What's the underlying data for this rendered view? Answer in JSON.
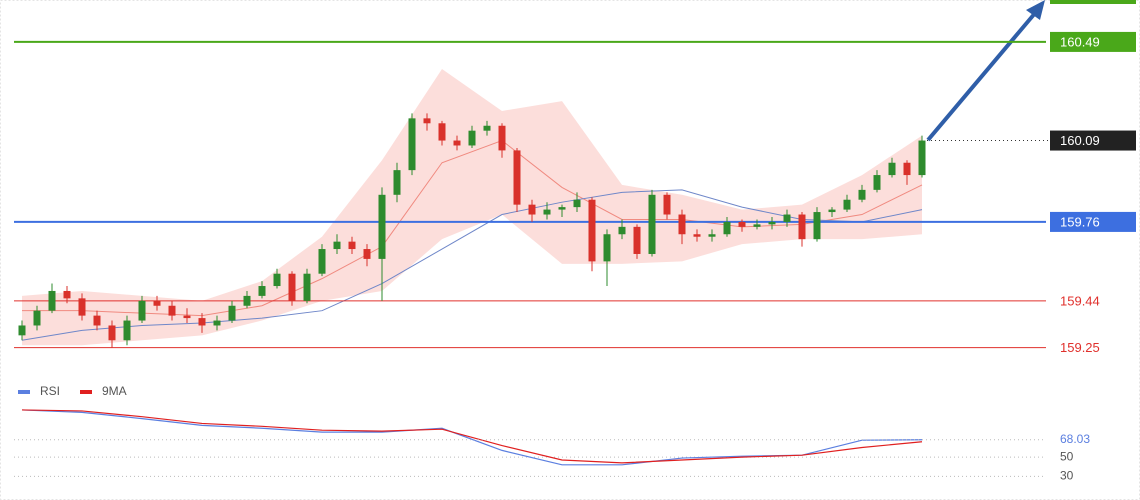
{
  "chart_data": [
    {
      "type": "candlestick",
      "ylim": [
        159.2,
        160.66
      ],
      "up_color": "#2e8b2e",
      "down_color": "#d9312b",
      "candles": [
        [
          159.3,
          159.36,
          159.28,
          159.34
        ],
        [
          159.34,
          159.42,
          159.32,
          159.4
        ],
        [
          159.4,
          159.51,
          159.39,
          159.48
        ],
        [
          159.48,
          159.5,
          159.43,
          159.45
        ],
        [
          159.45,
          159.47,
          159.36,
          159.38
        ],
        [
          159.38,
          159.4,
          159.32,
          159.34
        ],
        [
          159.34,
          159.36,
          159.25,
          159.28
        ],
        [
          159.28,
          159.38,
          159.26,
          159.36
        ],
        [
          159.36,
          159.46,
          159.35,
          159.44
        ],
        [
          159.44,
          159.46,
          159.4,
          159.42
        ],
        [
          159.42,
          159.44,
          159.36,
          159.38
        ],
        [
          159.38,
          159.41,
          159.35,
          159.37
        ],
        [
          159.37,
          159.39,
          159.31,
          159.34
        ],
        [
          159.34,
          159.38,
          159.32,
          159.36
        ],
        [
          159.36,
          159.44,
          159.35,
          159.42
        ],
        [
          159.42,
          159.48,
          159.41,
          159.46
        ],
        [
          159.46,
          159.52,
          159.45,
          159.5
        ],
        [
          159.5,
          159.57,
          159.49,
          159.55
        ],
        [
          159.55,
          159.56,
          159.42,
          159.44
        ],
        [
          159.44,
          159.57,
          159.43,
          159.55
        ],
        [
          159.55,
          159.67,
          159.54,
          159.65
        ],
        [
          159.65,
          159.71,
          159.63,
          159.68
        ],
        [
          159.68,
          159.7,
          159.63,
          159.65
        ],
        [
          159.65,
          159.67,
          159.58,
          159.61
        ],
        [
          159.61,
          159.9,
          159.44,
          159.87
        ],
        [
          159.87,
          160.0,
          159.84,
          159.97
        ],
        [
          159.97,
          160.2,
          159.95,
          160.18
        ],
        [
          160.18,
          160.2,
          160.13,
          160.16
        ],
        [
          160.16,
          160.17,
          160.07,
          160.09
        ],
        [
          160.09,
          160.11,
          160.05,
          160.07
        ],
        [
          160.07,
          160.15,
          160.06,
          160.13
        ],
        [
          160.13,
          160.17,
          160.11,
          160.15
        ],
        [
          160.15,
          160.16,
          160.02,
          160.05
        ],
        [
          160.05,
          160.06,
          159.8,
          159.83
        ],
        [
          159.83,
          159.85,
          159.76,
          159.79
        ],
        [
          159.79,
          159.84,
          159.77,
          159.81
        ],
        [
          159.81,
          159.83,
          159.78,
          159.82
        ],
        [
          159.82,
          159.88,
          159.8,
          159.85
        ],
        [
          159.85,
          159.86,
          159.56,
          159.6
        ],
        [
          159.6,
          159.73,
          159.5,
          159.71
        ],
        [
          159.71,
          159.77,
          159.69,
          159.74
        ],
        [
          159.74,
          159.75,
          159.61,
          159.63
        ],
        [
          159.63,
          159.89,
          159.62,
          159.87
        ],
        [
          159.87,
          159.88,
          159.77,
          159.79
        ],
        [
          159.79,
          159.81,
          159.67,
          159.71
        ],
        [
          159.71,
          159.73,
          159.68,
          159.7
        ],
        [
          159.7,
          159.73,
          159.68,
          159.71
        ],
        [
          159.71,
          159.78,
          159.7,
          159.76
        ],
        [
          159.76,
          159.77,
          159.72,
          159.74
        ],
        [
          159.74,
          159.77,
          159.73,
          159.75
        ],
        [
          159.75,
          159.78,
          159.73,
          159.76
        ],
        [
          159.76,
          159.81,
          159.74,
          159.79
        ],
        [
          159.79,
          159.8,
          159.66,
          159.69
        ],
        [
          159.69,
          159.82,
          159.68,
          159.8
        ],
        [
          159.8,
          159.82,
          159.78,
          159.81
        ],
        [
          159.81,
          159.87,
          159.8,
          159.85
        ],
        [
          159.85,
          159.91,
          159.84,
          159.89
        ],
        [
          159.89,
          159.97,
          159.88,
          159.95
        ],
        [
          159.95,
          160.02,
          159.94,
          160.0
        ],
        [
          160.0,
          160.01,
          159.91,
          159.95
        ],
        [
          159.95,
          160.11,
          159.94,
          160.09
        ]
      ],
      "overlay_x": [
        0,
        4,
        8,
        12,
        16,
        20,
        24,
        28,
        32,
        36,
        40,
        44,
        48,
        52,
        56,
        60
      ],
      "band": {
        "color": "#fbd3cf",
        "upper": [
          159.46,
          159.48,
          159.46,
          159.44,
          159.52,
          159.7,
          160.01,
          160.38,
          160.21,
          160.25,
          159.91,
          159.87,
          159.81,
          159.83,
          159.95,
          160.11
        ],
        "lower": [
          159.26,
          159.26,
          159.28,
          159.3,
          159.36,
          159.44,
          159.48,
          159.69,
          159.79,
          159.59,
          159.59,
          159.6,
          159.67,
          159.69,
          159.69,
          159.71
        ]
      },
      "ma_lines": [
        {
          "color": "#f08a80",
          "values": [
            159.4,
            159.4,
            159.39,
            159.38,
            159.42,
            159.53,
            159.66,
            160.0,
            160.09,
            159.9,
            159.77,
            159.77,
            159.74,
            159.75,
            159.79,
            159.91
          ]
        },
        {
          "color": "#6f87c9",
          "values": [
            159.28,
            159.32,
            159.34,
            159.35,
            159.37,
            159.4,
            159.51,
            159.65,
            159.79,
            159.84,
            159.88,
            159.89,
            159.82,
            159.77,
            159.76,
            159.81
          ]
        }
      ],
      "levels": [
        {
          "value": 160.49,
          "color": "#4aa81a",
          "label_box": true
        },
        {
          "value": 159.76,
          "color": "#3d6fe0",
          "label_box": true
        },
        {
          "value": 159.44,
          "color": "#e0302c",
          "label_box": false
        },
        {
          "value": 159.25,
          "color": "#e0302c",
          "label_box": false
        }
      ],
      "current": {
        "value": 160.09,
        "color": "#222222"
      }
    },
    {
      "type": "line",
      "ylim": [
        20,
        100
      ],
      "yticks": [
        50,
        30
      ],
      "x": [
        0,
        4,
        8,
        12,
        16,
        20,
        24,
        28,
        32,
        36,
        40,
        44,
        48,
        52,
        56,
        60
      ],
      "series": [
        {
          "name": "RSI",
          "color": "#5b7fe0",
          "values": [
            99,
            96.5,
            90,
            83,
            80,
            76,
            76,
            80,
            57,
            42,
            42,
            49,
            51,
            52,
            67.6,
            68.03
          ]
        },
        {
          "name": "9MA",
          "color": "#e02020",
          "values": [
            99,
            98,
            92,
            85,
            82,
            78,
            77,
            79,
            62,
            47,
            44,
            47,
            50,
            52,
            60,
            66
          ]
        }
      ]
    }
  ]
}
